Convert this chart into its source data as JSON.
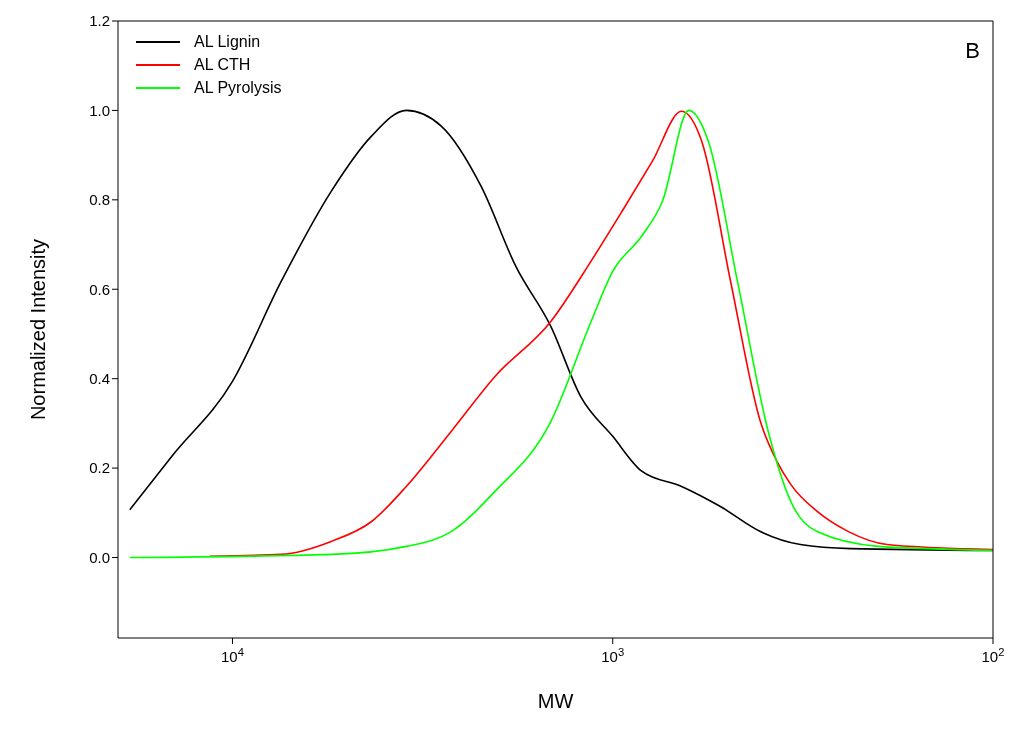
{
  "chart_data": {
    "type": "line",
    "xlabel": "MW",
    "ylabel": "Normalized Intensity",
    "log": "x",
    "xlim": [
      20000,
      100
    ],
    "xticks": [
      {
        "value": 10000,
        "label": "10$^{4}$"
      },
      {
        "value": 1000,
        "label": "10$^{3}$"
      },
      {
        "value": 100,
        "label": "10$^{2}$"
      }
    ],
    "ylim": [
      -0.18,
      1.2
    ],
    "yticks": [
      {
        "value": 0,
        "label": "0.0"
      },
      {
        "value": 0.2,
        "label": "0.2"
      },
      {
        "value": 0.4,
        "label": "0.4"
      },
      {
        "value": 0.6,
        "label": "0.6"
      },
      {
        "value": 0.8,
        "label": "0.8"
      },
      {
        "value": 1,
        "label": "1.0"
      },
      {
        "value": 1.2,
        "label": "1.2"
      }
    ],
    "grid": false,
    "legend": "top left",
    "marker": "none",
    "line_style": "solid",
    "annotations": [
      "B"
    ],
    "series": [
      {
        "name": "AL Lignin",
        "color": "#000000",
        "x": [
          18620,
          14450,
          10000,
          7440,
          5500,
          4315,
          3490,
          2825,
          2218,
          1798,
          1455,
          1214,
          1000,
          839,
          659,
          521,
          409,
          321,
          237,
          100
        ],
        "values": [
          0.107,
          0.226,
          0.394,
          0.618,
          0.819,
          0.942,
          1.0,
          0.965,
          0.83,
          0.651,
          0.517,
          0.36,
          0.271,
          0.193,
          0.159,
          0.114,
          0.058,
          0.029,
          0.02,
          0.016
        ]
      },
      {
        "name": "AL CTH",
        "color": "#ff0000",
        "x": [
          11490,
          7440,
          5500,
          4315,
          3490,
          2660,
          2040,
          1455,
          1140,
          944,
          787,
          659,
          583,
          490,
          409,
          370,
          340,
          290,
          240,
          190,
          140,
          100
        ],
        "values": [
          0.003,
          0.007,
          0.036,
          0.08,
          0.159,
          0.282,
          0.405,
          0.528,
          0.663,
          0.775,
          0.886,
          0.998,
          0.93,
          0.618,
          0.304,
          0.215,
          0.163,
          0.103,
          0.058,
          0.029,
          0.022,
          0.018
        ]
      },
      {
        "name": "AL Pyrolysis",
        "color": "#00ff00",
        "x": [
          18620,
          5500,
          3490,
          2660,
          2040,
          1455,
          1140,
          1000,
          839,
          740,
          631,
          560,
          470,
          390,
          340,
          290,
          200,
          100
        ],
        "values": [
          0.0,
          0.007,
          0.025,
          0.058,
          0.148,
          0.304,
          0.528,
          0.64,
          0.719,
          0.797,
          1.0,
          0.93,
          0.618,
          0.282,
          0.125,
          0.058,
          0.025,
          0.016
        ]
      }
    ]
  }
}
